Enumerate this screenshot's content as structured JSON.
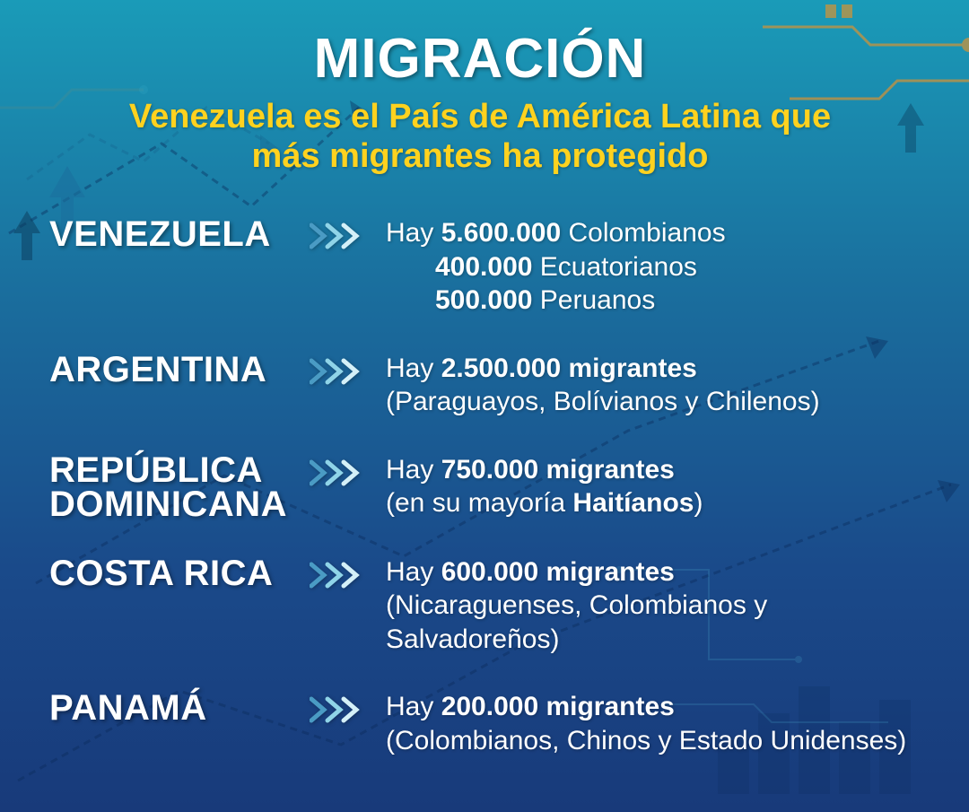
{
  "title": "MIGRACIÓN",
  "subtitle_line1": "Venezuela es el País de América Latina que",
  "subtitle_line2": "más migrantes ha protegido",
  "colors": {
    "title_color": "#ffffff",
    "subtitle_color": "#ffd21f",
    "text_color": "#ffffff",
    "bg_gradient_top": "#1a9bb8",
    "bg_gradient_bottom": "#183a7a",
    "accent_orange": "#f7931e",
    "chevron_light": "#b8e4f0",
    "chevron_dark": "#4a9bc4"
  },
  "rows": [
    {
      "country": "VENEZUELA",
      "detail_lines": [
        {
          "prefix": "Hay ",
          "bold": "5.600.000",
          "suffix": " Colombianos",
          "indent": false
        },
        {
          "prefix": "",
          "bold": "400.000",
          "suffix": " Ecuatorianos",
          "indent": true
        },
        {
          "prefix": "",
          "bold": "500.000",
          "suffix": " Peruanos",
          "indent": true
        }
      ]
    },
    {
      "country": "ARGENTINA",
      "detail_lines": [
        {
          "prefix": "Hay ",
          "bold": "2.500.000 migrantes",
          "suffix": "",
          "indent": false
        },
        {
          "prefix": "(Paraguayos, Bolívianos y Chilenos)",
          "bold": "",
          "suffix": "",
          "indent": false
        }
      ]
    },
    {
      "country_line1": "REPÚBLICA",
      "country_line2": "DOMINICANA",
      "multiline": true,
      "detail_lines": [
        {
          "prefix": "Hay ",
          "bold": "750.000 migrantes",
          "suffix": "",
          "indent": false
        },
        {
          "prefix": "(en su mayoría ",
          "bold": "Haitíanos",
          "suffix": ")",
          "indent": false
        }
      ]
    },
    {
      "country": "COSTA RICA",
      "detail_lines": [
        {
          "prefix": "Hay ",
          "bold": "600.000 migrantes",
          "suffix": "",
          "indent": false
        },
        {
          "prefix": "(Nicaraguenses, Colombianos y Salvadoreños)",
          "bold": "",
          "suffix": "",
          "indent": false
        }
      ]
    },
    {
      "country": "PANAMÁ",
      "detail_lines": [
        {
          "prefix": "Hay ",
          "bold": "200.000 migrantes",
          "suffix": "",
          "indent": false
        },
        {
          "prefix": "(Colombianos, Chinos y Estado Unidenses)",
          "bold": "",
          "suffix": "",
          "indent": false
        }
      ]
    }
  ]
}
